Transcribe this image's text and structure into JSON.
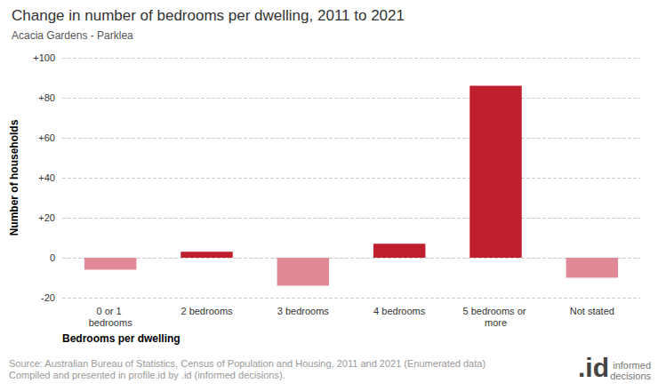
{
  "chart_data": {
    "type": "bar",
    "title": "Change in number of bedrooms per dwelling, 2011 to 2021",
    "subtitle": "Acacia Gardens - Parklea",
    "x_label": "Bedrooms per dwelling",
    "y_label": "Number of households",
    "categories": [
      "0 or 1 bedrooms",
      "2 bedrooms",
      "3 bedrooms",
      "4 bedrooms",
      "5 bedrooms or more",
      "Not stated"
    ],
    "values": [
      -6,
      3,
      -14,
      7,
      86,
      -10
    ],
    "colors": [
      "#e08a98",
      "#c0202e",
      "#e08a98",
      "#c0202e",
      "#c0202e",
      "#e08a98"
    ],
    "ylim": [
      -20,
      100
    ],
    "yticks": [
      {
        "value": -20,
        "label": "-20"
      },
      {
        "value": 0,
        "label": "0"
      },
      {
        "value": 20,
        "label": "+20"
      },
      {
        "value": 40,
        "label": "+40"
      },
      {
        "value": 60,
        "label": "+60"
      },
      {
        "value": 80,
        "label": "+80"
      },
      {
        "value": 100,
        "label": "+100"
      }
    ],
    "grid": true,
    "source": [
      "Source: Australian Bureau of Statistics, Census of Population and Housing, 2011 and 2021 (Enumerated data)",
      "Compiled and presented in profile.id by .id (informed decisions)."
    ],
    "logo": ".id",
    "logo_caption": [
      "informed",
      "decisions"
    ]
  }
}
